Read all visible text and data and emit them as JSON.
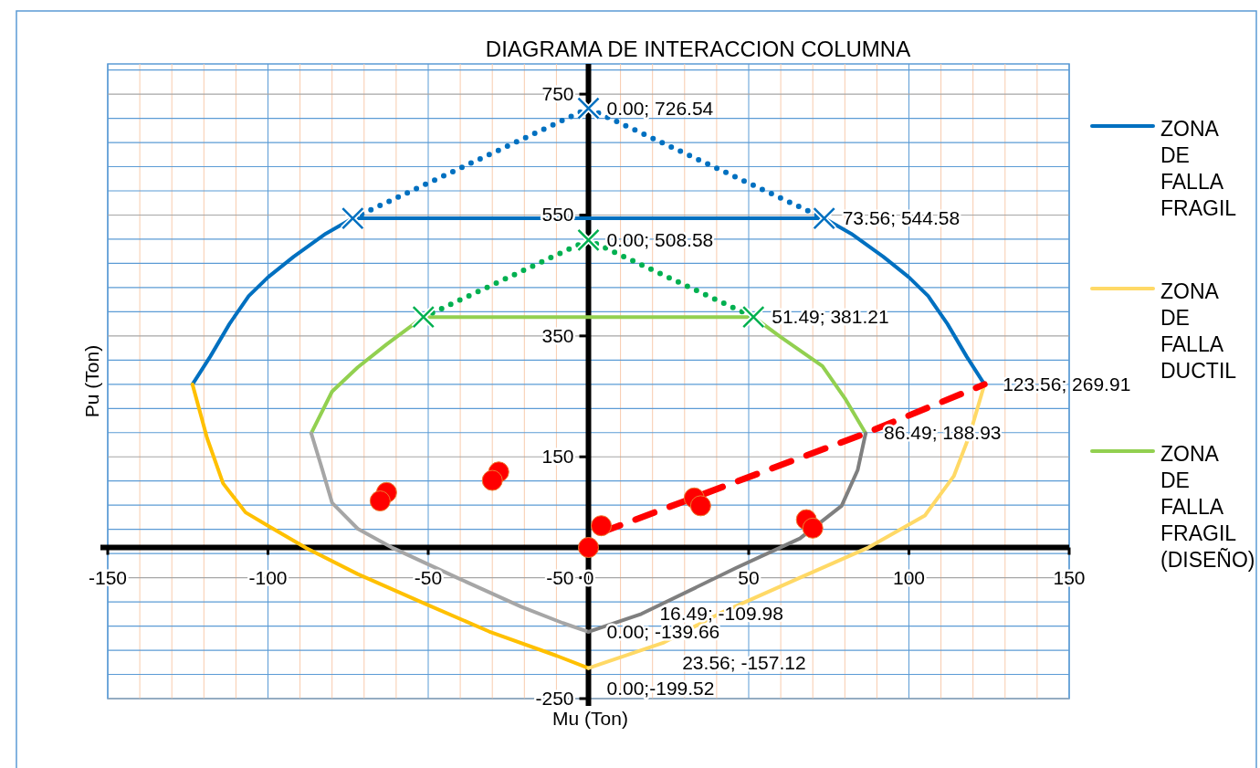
{
  "chart_data": {
    "type": "line",
    "title": "DIAGRAMA DE INTERACCION COLUMNA",
    "xlabel": "Mu (Ton)",
    "ylabel": "Pu (Ton)",
    "xlim": [
      -150,
      150
    ],
    "ylim": [
      -250,
      800
    ],
    "xticks": [
      -150,
      {
        "value": -140,
        "label": null
      },
      {
        "value": -130,
        "label": null
      },
      {
        "value": -120,
        "label": null
      },
      {
        "value": -110,
        "label": null
      },
      -100,
      {
        "value": -90,
        "label": null
      },
      {
        "value": -80,
        "label": null
      },
      {
        "value": -70,
        "label": null
      },
      {
        "value": -60,
        "label": null
      },
      -50,
      {
        "value": -40,
        "label": null
      },
      {
        "value": -30,
        "label": null
      },
      {
        "value": -20,
        "label": null
      },
      {
        "value": -10,
        "label": null
      },
      0,
      {
        "value": 10,
        "label": null
      },
      {
        "value": 20,
        "label": null
      },
      {
        "value": 30,
        "label": null
      },
      {
        "value": 40,
        "label": null
      },
      50,
      {
        "value": 60,
        "label": null
      },
      {
        "value": 70,
        "label": null
      },
      {
        "value": 80,
        "label": null
      },
      {
        "value": 90,
        "label": null
      },
      100,
      {
        "value": 110,
        "label": null
      },
      {
        "value": 120,
        "label": null
      },
      {
        "value": 130,
        "label": null
      },
      {
        "value": 140,
        "label": null
      },
      150
    ],
    "yticks": [
      -250,
      {
        "value": -210,
        "label": null
      },
      {
        "value": -170,
        "label": null
      },
      {
        "value": -130,
        "label": null
      },
      {
        "value": -90,
        "label": null
      },
      -50,
      {
        "value": -10,
        "label": null
      },
      {
        "value": 30,
        "label": null
      },
      {
        "value": 70,
        "label": null
      },
      {
        "value": 110,
        "label": null
      },
      150,
      {
        "value": 190,
        "label": null
      },
      {
        "value": 230,
        "label": null
      },
      {
        "value": 270,
        "label": null
      },
      {
        "value": 310,
        "label": null
      },
      350,
      {
        "value": 390,
        "label": null
      },
      {
        "value": 430,
        "label": null
      },
      {
        "value": 470,
        "label": null
      },
      {
        "value": 510,
        "label": null
      },
      550,
      {
        "value": 590,
        "label": null
      },
      {
        "value": 630,
        "label": null
      },
      {
        "value": 670,
        "label": null
      },
      {
        "value": 710,
        "label": null
      },
      750,
      {
        "value": 790,
        "label": null
      }
    ],
    "grid": true,
    "legend": "right",
    "series": [
      {
        "name": "ZONA DE FALLA FRAGIL",
        "color": "#0070c0",
        "line_style": "solid",
        "marker": "none",
        "x": [
          -123.56,
          -118,
          -112,
          -106,
          -100,
          -92,
          -82,
          -73.56,
          73.56,
          82,
          92,
          100,
          106,
          112,
          118,
          123.56
        ],
        "values": [
          269.91,
          316,
          370,
          416,
          447,
          481,
          519,
          544.58,
          544.58,
          519,
          481,
          447,
          416,
          370,
          316,
          269.91
        ]
      },
      {
        "color": "#ffc000",
        "line_style": "solid",
        "marker": "none",
        "x": [
          -123.56,
          -119,
          -114,
          -107,
          -100,
          -88,
          -72,
          -51,
          -31,
          -10,
          0
        ],
        "values": [
          269.91,
          181,
          106,
          58,
          36,
          -1,
          -44,
          -93,
          -139,
          -179,
          -199.52
        ]
      },
      {
        "name": "ZONA DE FALLA DUCTIL",
        "color": "#ffd966",
        "line_style": "solid",
        "marker": "none",
        "x": [
          0,
          23.56,
          41,
          66,
          87,
          105,
          114,
          119,
          123.56
        ],
        "values": [
          -199.52,
          -157.12,
          -109,
          -50,
          -1,
          53,
          118,
          187,
          269.91
        ]
      },
      {
        "name": "ZONA DE FALLA FRAGIL (DISEÑO)",
        "color": "#92d050",
        "line_style": "solid",
        "marker": "none",
        "x": [
          -86.49,
          -80,
          -72,
          -63,
          -51.49,
          51.49,
          60,
          73,
          80,
          86.49
        ],
        "values": [
          188.93,
          258,
          298,
          336,
          381.21,
          381.21,
          348,
          300,
          247,
          188.93
        ]
      },
      {
        "color": "#a6a6a6",
        "line_style": "solid",
        "marker": "none",
        "x": [
          -86.49,
          -83,
          -80,
          -72,
          -61,
          -41,
          -21,
          -8,
          0
        ],
        "values": [
          188.93,
          128,
          74,
          31,
          -1,
          -50,
          -98,
          -125,
          -139.66
        ]
      },
      {
        "color": "#7f7f7f",
        "line_style": "solid",
        "marker": "none",
        "x": [
          0,
          16.49,
          46,
          66,
          79,
          84,
          86.49
        ],
        "values": [
          -139.66,
          -109.98,
          -34,
          15,
          69,
          128,
          188.93
        ]
      },
      {
        "color": "#0070c0",
        "line_style": "dotted",
        "marker": "cross",
        "x": [
          -73.56,
          0,
          73.56
        ],
        "values": [
          544.58,
          726.54,
          544.58
        ]
      },
      {
        "color": "#00b050",
        "line_style": "dotted",
        "marker": "cross",
        "x": [
          -51.49,
          0,
          51.49
        ],
        "values": [
          381.21,
          508.58,
          381.21
        ]
      },
      {
        "color": "#ff0000",
        "line_style": "dashed",
        "marker": "none",
        "x": [
          4,
          86.49,
          123.56
        ],
        "values": [
          25,
          188.93,
          269.91
        ]
      },
      {
        "type": "scatter",
        "color": "#ff0000",
        "marker": "circle",
        "x": [
          0,
          4,
          33,
          35,
          68,
          70,
          -63,
          -65,
          -28,
          -30
        ],
        "values": [
          0,
          36,
          82,
          69,
          46,
          32,
          91,
          77,
          125,
          111
        ]
      }
    ],
    "annotations": [
      {
        "text": "0.00; 726.54",
        "x": 0,
        "y": 726.54
      },
      {
        "text": "73.56; 544.58",
        "x": 73.56,
        "y": 544.58
      },
      {
        "text": "0.00; 508.58",
        "x": 0,
        "y": 508.58
      },
      {
        "text": "51.49; 381.21",
        "x": 51.49,
        "y": 381.21
      },
      {
        "text": "123.56; 269.91",
        "x": 123.56,
        "y": 269.91
      },
      {
        "text": "86.49; 188.93",
        "x": 86.49,
        "y": 188.93
      },
      {
        "text": "16.49; -109.98",
        "x": 16.49,
        "y": -109.98
      },
      {
        "text": "0.00; -139.66",
        "x": 0,
        "y": -139.66
      },
      {
        "text": "23.56; -157.12",
        "x": 23.56,
        "y": -157.12
      },
      {
        "text": "0.00;-199.52",
        "x": 0,
        "y": -199.52
      }
    ]
  }
}
